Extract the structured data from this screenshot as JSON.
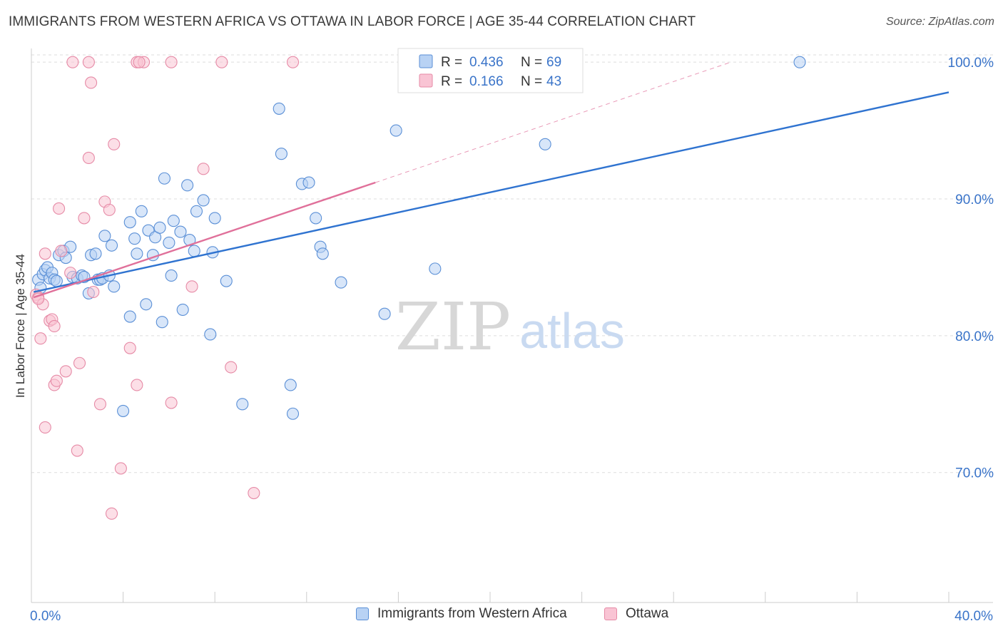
{
  "header": {
    "title": "IMMIGRANTS FROM WESTERN AFRICA VS OTTAWA IN LABOR FORCE | AGE 35-44 CORRELATION CHART",
    "source": "Source: ZipAtlas.com"
  },
  "watermark": {
    "zip": "ZIP",
    "atlas": "atlas"
  },
  "colors": {
    "blue_fill": "#b8d2f4",
    "blue_stroke": "#5a8fd6",
    "blue_line": "#2f73d0",
    "pink_fill": "#f9c4d4",
    "pink_stroke": "#e68aa6",
    "pink_line": "#e0709a",
    "axis_text": "#3a74c9",
    "grid": "#dddddd"
  },
  "chart_data": {
    "type": "scatter",
    "title": "IMMIGRANTS FROM WESTERN AFRICA VS OTTAWA IN LABOR FORCE | AGE 35-44 CORRELATION CHART",
    "xlabel": "",
    "ylabel": "In Labor Force | Age 35-44",
    "xlim": [
      0,
      40
    ],
    "ylim": [
      60.5,
      101
    ],
    "x_tick_labels": [
      {
        "value": 0,
        "label": "0.0%"
      },
      {
        "value": 40,
        "label": "40.0%"
      }
    ],
    "y_ticks": [
      {
        "value": 70,
        "label": "70.0%"
      },
      {
        "value": 80,
        "label": "80.0%"
      },
      {
        "value": 90,
        "label": "90.0%"
      },
      {
        "value": 100,
        "label": "100.0%"
      }
    ],
    "stats_legend": [
      {
        "r_label": "R = ",
        "r_value": "0.436",
        "n_label": "N = ",
        "n_value": "69"
      },
      {
        "r_label": "R = ",
        "r_value": "0.166",
        "n_label": "N = ",
        "n_value": "43"
      }
    ],
    "series": [
      {
        "name": "Immigrants from Western Africa",
        "color": "blue",
        "trend": {
          "x0": 0.1,
          "y0": 83.2,
          "x1": 40,
          "y1": 97.8
        },
        "points": [
          [
            0.3,
            84.1
          ],
          [
            0.4,
            83.5
          ],
          [
            0.5,
            84.5
          ],
          [
            0.6,
            84.8
          ],
          [
            0.7,
            85.0
          ],
          [
            0.8,
            84.2
          ],
          [
            0.9,
            84.6
          ],
          [
            1.0,
            84.1
          ],
          [
            1.1,
            84.0
          ],
          [
            1.2,
            85.9
          ],
          [
            1.4,
            86.2
          ],
          [
            1.5,
            85.7
          ],
          [
            1.7,
            86.5
          ],
          [
            1.8,
            84.3
          ],
          [
            2.0,
            84.2
          ],
          [
            2.2,
            84.4
          ],
          [
            2.3,
            84.3
          ],
          [
            2.5,
            83.1
          ],
          [
            2.6,
            85.9
          ],
          [
            2.8,
            86.0
          ],
          [
            2.9,
            84.1
          ],
          [
            3.0,
            84.1
          ],
          [
            3.1,
            84.2
          ],
          [
            3.2,
            87.3
          ],
          [
            3.4,
            84.4
          ],
          [
            3.5,
            86.6
          ],
          [
            3.6,
            83.6
          ],
          [
            4.3,
            88.3
          ],
          [
            4.3,
            81.4
          ],
          [
            4.5,
            87.1
          ],
          [
            4.6,
            86.0
          ],
          [
            4.8,
            89.1
          ],
          [
            5.0,
            82.3
          ],
          [
            5.1,
            87.7
          ],
          [
            5.3,
            85.9
          ],
          [
            5.4,
            87.2
          ],
          [
            5.6,
            87.9
          ],
          [
            5.7,
            81.0
          ],
          [
            5.8,
            91.5
          ],
          [
            6.0,
            86.8
          ],
          [
            6.1,
            84.4
          ],
          [
            6.2,
            88.4
          ],
          [
            6.5,
            87.6
          ],
          [
            6.6,
            81.9
          ],
          [
            6.8,
            91.0
          ],
          [
            6.9,
            87.0
          ],
          [
            7.1,
            86.2
          ],
          [
            7.2,
            89.1
          ],
          [
            7.5,
            89.9
          ],
          [
            7.8,
            80.1
          ],
          [
            7.9,
            86.1
          ],
          [
            8.0,
            88.6
          ],
          [
            8.5,
            84.0
          ],
          [
            10.8,
            96.6
          ],
          [
            10.9,
            93.3
          ],
          [
            11.3,
            76.4
          ],
          [
            11.4,
            74.3
          ],
          [
            11.8,
            91.1
          ],
          [
            12.1,
            91.2
          ],
          [
            12.4,
            88.6
          ],
          [
            12.6,
            86.5
          ],
          [
            12.7,
            86.0
          ],
          [
            13.5,
            83.9
          ],
          [
            15.4,
            81.6
          ],
          [
            15.9,
            95.0
          ],
          [
            17.6,
            84.9
          ],
          [
            22.4,
            94.0
          ],
          [
            33.5,
            100.0
          ],
          [
            4.0,
            74.5
          ],
          [
            9.2,
            75.0
          ]
        ]
      },
      {
        "name": "Ottawa",
        "color": "pink",
        "trend": {
          "x0": 0.1,
          "y0": 82.8,
          "x1": 15.0,
          "y1": 91.2
        },
        "trend_ext": {
          "x0": 15.0,
          "y0": 91.2,
          "x1": 30.5,
          "y1": 100.0
        },
        "points": [
          [
            0.2,
            83.0
          ],
          [
            0.3,
            82.8
          ],
          [
            0.4,
            79.8
          ],
          [
            0.5,
            82.3
          ],
          [
            0.6,
            86.0
          ],
          [
            0.8,
            81.1
          ],
          [
            0.9,
            81.2
          ],
          [
            1.0,
            80.7
          ],
          [
            1.0,
            76.4
          ],
          [
            1.1,
            76.7
          ],
          [
            1.2,
            89.3
          ],
          [
            1.3,
            86.2
          ],
          [
            1.5,
            77.4
          ],
          [
            1.7,
            84.6
          ],
          [
            2.0,
            71.6
          ],
          [
            2.1,
            78.0
          ],
          [
            2.3,
            88.6
          ],
          [
            2.5,
            93.0
          ],
          [
            2.6,
            98.5
          ],
          [
            2.7,
            83.2
          ],
          [
            3.0,
            75.0
          ],
          [
            3.2,
            89.8
          ],
          [
            3.4,
            89.2
          ],
          [
            3.5,
            67.0
          ],
          [
            3.6,
            94.0
          ],
          [
            3.9,
            70.3
          ],
          [
            4.3,
            79.1
          ],
          [
            4.6,
            76.4
          ],
          [
            6.1,
            75.1
          ],
          [
            7.0,
            83.6
          ],
          [
            7.5,
            92.2
          ],
          [
            8.7,
            77.7
          ],
          [
            9.7,
            68.5
          ],
          [
            1.8,
            100.0
          ],
          [
            2.5,
            100.0
          ],
          [
            4.6,
            100.0
          ],
          [
            4.9,
            100.0
          ],
          [
            6.1,
            100.0
          ],
          [
            8.3,
            100.0
          ],
          [
            11.4,
            100.0
          ],
          [
            0.3,
            82.7
          ],
          [
            0.6,
            73.3
          ],
          [
            4.7,
            100.0
          ]
        ]
      }
    ]
  }
}
